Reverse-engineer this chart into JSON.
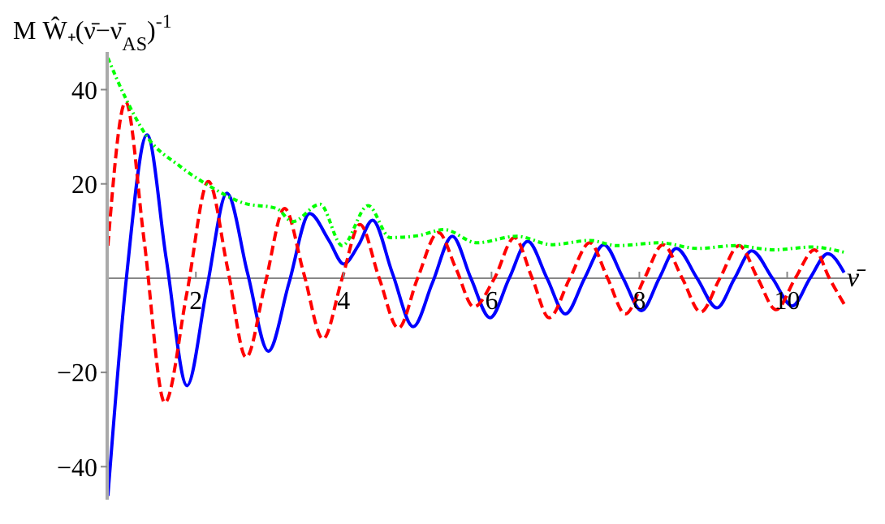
{
  "chart_data": {
    "type": "line",
    "xlabel": "ν̄",
    "ylabel": "M Ŵ₊(ν̄−ν̄$_{AS}$)$^{-1}$",
    "xlim": [
      0.8,
      10.95
    ],
    "ylim": [
      -47,
      48
    ],
    "xticks": [
      2,
      4,
      6,
      8,
      10
    ],
    "yticks": [
      -40,
      -20,
      20,
      40
    ],
    "marker": "none",
    "series": [
      {
        "color": "#0000ff",
        "line_style": "solid",
        "x": [
          0.81,
          1.06,
          1.34,
          1.6,
          1.88,
          2.15,
          2.42,
          2.7,
          2.98,
          3.26,
          3.54,
          3.8,
          4.0,
          4.2,
          4.39,
          4.66,
          4.94,
          5.2,
          5.47,
          5.72,
          5.98,
          6.24,
          6.49,
          6.75,
          7.0,
          7.26,
          7.52,
          7.78,
          8.03,
          8.27,
          8.5,
          8.78,
          9.05,
          9.29,
          9.52,
          9.8,
          10.07,
          10.31,
          10.55,
          10.77
        ],
        "values": [
          -46.2,
          0,
          30.4,
          4,
          -22.8,
          -2,
          18,
          1,
          -15.5,
          -1,
          13.7,
          8,
          3,
          7,
          12.3,
          1,
          -10.3,
          -1,
          8.9,
          0,
          -8.4,
          0,
          7.8,
          0,
          -7.6,
          0,
          7.1,
          0,
          -6.9,
          0,
          6.3,
          0,
          -6.3,
          0,
          5.8,
          0,
          -5.9,
          0,
          5.2,
          1.2
        ]
      },
      {
        "color": "#ff0000",
        "line_style": "dashed",
        "x": [
          0.81,
          1.05,
          1.3,
          1.58,
          1.88,
          2.17,
          2.43,
          2.68,
          2.94,
          3.2,
          3.46,
          3.72,
          3.98,
          4.22,
          4.48,
          4.74,
          5.0,
          5.28,
          5.52,
          5.76,
          6.04,
          6.31,
          6.55,
          6.78,
          7.06,
          7.33,
          7.57,
          7.81,
          8.07,
          8.32,
          8.58,
          8.83,
          9.09,
          9.35,
          9.6,
          9.85,
          10.11,
          10.37,
          10.57,
          10.77
        ],
        "values": [
          6.9,
          37.4,
          8,
          -26.4,
          -3,
          20.5,
          2,
          -16.8,
          -1,
          14.8,
          1,
          -12.9,
          0,
          11.4,
          0,
          -10.6,
          0,
          9.7,
          2,
          -6.1,
          0,
          8.6,
          0,
          -8.4,
          0,
          7.5,
          0,
          -7.6,
          0,
          7.1,
          0,
          -7.2,
          0,
          6.9,
          0,
          -6.7,
          0,
          6.0,
          0,
          -5.5
        ]
      },
      {
        "color": "#00ff00",
        "line_style": "dotted",
        "x": [
          0.81,
          1.04,
          1.34,
          1.78,
          2.21,
          2.65,
          3.09,
          3.31,
          3.68,
          3.98,
          4.33,
          4.63,
          5.0,
          5.36,
          5.8,
          6.34,
          6.82,
          7.33,
          7.7,
          8.28,
          8.79,
          9.3,
          9.82,
          10.33,
          10.77
        ],
        "values": [
          46.7,
          38.5,
          30,
          23.8,
          19.3,
          15.9,
          14.8,
          12,
          15.7,
          6.9,
          15.4,
          8.6,
          9,
          10.3,
          7.5,
          8.9,
          7.1,
          8.0,
          6.9,
          7.5,
          6.3,
          6.9,
          6.0,
          6.6,
          5.5
        ]
      }
    ]
  }
}
